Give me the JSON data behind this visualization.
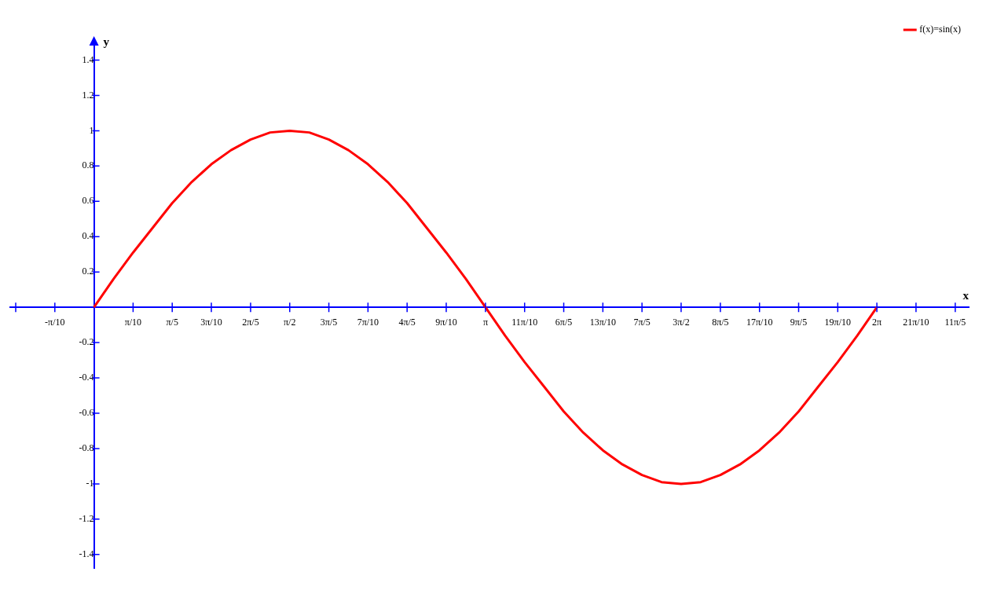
{
  "chart_data": {
    "type": "line",
    "xlabel": "x",
    "ylabel": "y",
    "legend": "top right",
    "grid": false,
    "marker": "none",
    "line_style": "solid",
    "x": [
      0,
      0.157,
      0.314,
      0.471,
      0.628,
      0.785,
      0.942,
      1.1,
      1.257,
      1.414,
      1.571,
      1.728,
      1.885,
      2.042,
      2.199,
      2.356,
      2.513,
      2.67,
      2.827,
      2.985,
      3.142,
      3.299,
      3.456,
      3.613,
      3.77,
      3.927,
      4.084,
      4.241,
      4.398,
      4.555,
      4.712,
      4.869,
      5.027,
      5.184,
      5.341,
      5.498,
      5.655,
      5.812,
      5.969,
      6.126,
      6.283
    ],
    "series": [
      {
        "name": "f(x)=sin(x)",
        "color": "#ff0000",
        "values": [
          0,
          0.16,
          0.31,
          0.45,
          0.59,
          0.71,
          0.81,
          0.89,
          0.95,
          0.99,
          1,
          0.99,
          0.95,
          0.89,
          0.81,
          0.71,
          0.59,
          0.45,
          0.31,
          0.16,
          0,
          -0.16,
          -0.31,
          -0.45,
          -0.59,
          -0.71,
          -0.81,
          -0.89,
          -0.95,
          -0.99,
          -1,
          -0.99,
          -0.95,
          -0.89,
          -0.81,
          -0.71,
          -0.59,
          -0.45,
          -0.31,
          -0.16,
          0
        ]
      }
    ],
    "xlim": [
      -0.67,
      7.02
    ],
    "ylim": [
      -1.48,
      1.5
    ],
    "xticks": [
      {
        "value": -0.628,
        "label": null
      },
      {
        "value": -0.314,
        "label": "-π/10"
      },
      {
        "value": 0.314,
        "label": "π/10"
      },
      {
        "value": 0.628,
        "label": "π/5"
      },
      {
        "value": 0.942,
        "label": "3π/10"
      },
      {
        "value": 1.257,
        "label": "2π/5"
      },
      {
        "value": 1.571,
        "label": "π/2"
      },
      {
        "value": 1.885,
        "label": "3π/5"
      },
      {
        "value": 2.199,
        "label": "7π/10"
      },
      {
        "value": 2.513,
        "label": "4π/5"
      },
      {
        "value": 2.827,
        "label": "9π/10"
      },
      {
        "value": 3.142,
        "label": "π"
      },
      {
        "value": 3.456,
        "label": "11π/10"
      },
      {
        "value": 3.77,
        "label": "6π/5"
      },
      {
        "value": 4.084,
        "label": "13π/10"
      },
      {
        "value": 4.398,
        "label": "7π/5"
      },
      {
        "value": 4.712,
        "label": "3π/2"
      },
      {
        "value": 5.027,
        "label": "8π/5"
      },
      {
        "value": 5.341,
        "label": "17π/10"
      },
      {
        "value": 5.655,
        "label": "9π/5"
      },
      {
        "value": 5.969,
        "label": "19π/10"
      },
      {
        "value": 6.283,
        "label": "2π"
      },
      {
        "value": 6.597,
        "label": "21π/10"
      },
      {
        "value": 6.912,
        "label": "11π/5"
      }
    ],
    "yticks": [
      -1.4,
      -1.2,
      -1,
      -0.8,
      -0.6,
      -0.4,
      -0.2,
      0.2,
      0.4,
      0.6,
      0.8,
      1,
      1.2,
      1.4
    ]
  }
}
